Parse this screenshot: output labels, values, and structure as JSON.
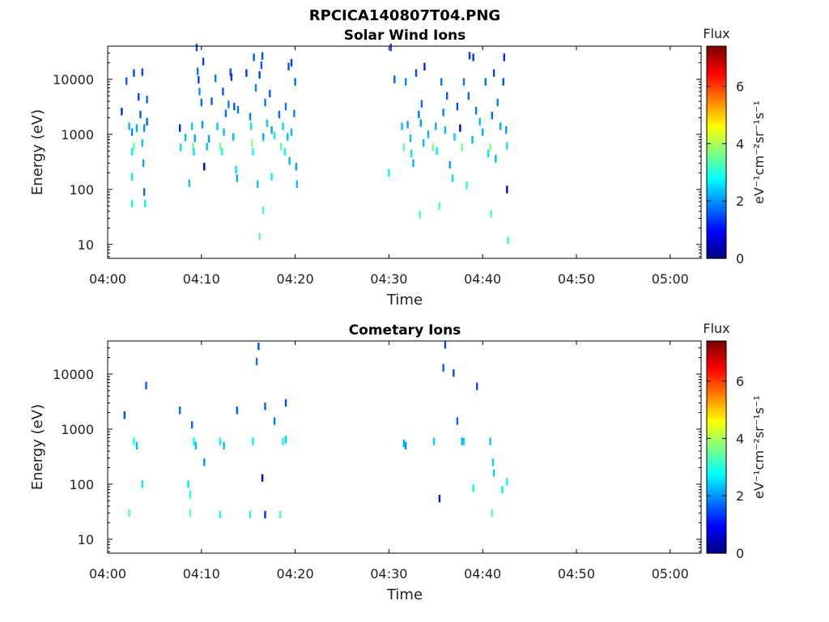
{
  "figure_title": "RPCICA140807T04.PNG",
  "colorbar": {
    "title": "Flux",
    "label": "eV⁻¹cm⁻²sr⁻¹s⁻¹",
    "ticks": [
      "0",
      "2",
      "4",
      "6"
    ],
    "range": [
      0,
      7.4
    ],
    "colormap": "jet"
  },
  "chart_data": [
    {
      "type": "heatmap",
      "title": "Solar Wind Ions",
      "xlabel": "Time",
      "ylabel": "Energy (eV)",
      "x_ticks": [
        "04:00",
        "04:10",
        "04:20",
        "04:30",
        "04:40",
        "04:50",
        "05:00"
      ],
      "x_range_minutes": [
        0,
        63.3
      ],
      "y_scale": "log",
      "y_ticks": [
        "10",
        "100",
        "1000",
        "10000"
      ],
      "y_range": [
        5.6,
        40000
      ],
      "grid": false,
      "points": [
        [
          1.5,
          2600,
          1.2
        ],
        [
          2.0,
          9300,
          1.6
        ],
        [
          2.3,
          1400,
          2.3
        ],
        [
          2.6,
          1100,
          1.9
        ],
        [
          2.6,
          480,
          2.7
        ],
        [
          2.8,
          600,
          3.6
        ],
        [
          2.6,
          170,
          2.6
        ],
        [
          2.6,
          55,
          2.8
        ],
        [
          2.8,
          13000,
          1.5
        ],
        [
          3.1,
          1300,
          2.2
        ],
        [
          3.3,
          4800,
          1.5
        ],
        [
          3.5,
          2300,
          1.6
        ],
        [
          3.7,
          700,
          2.4
        ],
        [
          3.7,
          13500,
          1.5
        ],
        [
          3.9,
          1300,
          2.0
        ],
        [
          3.8,
          300,
          2.1
        ],
        [
          3.9,
          90,
          1.7
        ],
        [
          4.0,
          55,
          2.7
        ],
        [
          4.2,
          1700,
          1.6
        ],
        [
          4.2,
          4300,
          1.7
        ],
        [
          7.7,
          1300,
          1.2
        ],
        [
          7.8,
          580,
          2.5
        ],
        [
          8.3,
          880,
          2.3
        ],
        [
          8.7,
          130,
          2.4
        ],
        [
          9.0,
          1400,
          2.4
        ],
        [
          9.1,
          600,
          3.7
        ],
        [
          9.2,
          480,
          2.6
        ],
        [
          9.3,
          850,
          2.1
        ],
        [
          9.5,
          38000,
          1.5
        ],
        [
          9.6,
          14000,
          1.8
        ],
        [
          9.7,
          9800,
          1.4
        ],
        [
          9.8,
          6000,
          2.0
        ],
        [
          10.0,
          3800,
          1.7
        ],
        [
          10.1,
          1500,
          2.0
        ],
        [
          10.2,
          21000,
          1.3
        ],
        [
          10.3,
          260,
          0.6
        ],
        [
          10.6,
          600,
          2.3
        ],
        [
          10.8,
          830,
          2.1
        ],
        [
          11.1,
          4000,
          1.6
        ],
        [
          11.5,
          10400,
          1.9
        ],
        [
          11.7,
          1400,
          2.4
        ],
        [
          12.0,
          600,
          3.7
        ],
        [
          12.2,
          480,
          2.9
        ],
        [
          12.3,
          6000,
          1.5
        ],
        [
          12.4,
          1100,
          2.3
        ],
        [
          12.6,
          2400,
          1.7
        ],
        [
          12.9,
          3500,
          1.9
        ],
        [
          13.1,
          13500,
          1.5
        ],
        [
          13.2,
          11000,
          1.3
        ],
        [
          13.4,
          900,
          2.3
        ],
        [
          13.5,
          3200,
          1.6
        ],
        [
          13.7,
          230,
          2.6
        ],
        [
          13.8,
          160,
          2.2
        ],
        [
          13.9,
          2800,
          1.8
        ],
        [
          14.8,
          13000,
          1.3
        ],
        [
          15.2,
          2100,
          1.8
        ],
        [
          15.3,
          1400,
          2.6
        ],
        [
          15.4,
          700,
          3.8
        ],
        [
          15.5,
          480,
          2.8
        ],
        [
          15.6,
          25000,
          1.6
        ],
        [
          15.8,
          7000,
          1.9
        ],
        [
          16.0,
          125,
          2.4
        ],
        [
          16.2,
          12000,
          1.4
        ],
        [
          16.4,
          18000,
          1.6
        ],
        [
          16.2,
          14,
          3.5
        ],
        [
          16.5,
          26500,
          1.5
        ],
        [
          16.6,
          42,
          3.3
        ],
        [
          16.6,
          900,
          2.2
        ],
        [
          16.8,
          3800,
          1.8
        ],
        [
          17.0,
          1600,
          2.4
        ],
        [
          17.3,
          5500,
          1.6
        ],
        [
          17.5,
          1200,
          2.1
        ],
        [
          17.5,
          170,
          2.7
        ],
        [
          17.8,
          950,
          2.6
        ],
        [
          18.3,
          2300,
          1.7
        ],
        [
          18.5,
          600,
          3.5
        ],
        [
          18.7,
          1400,
          2.5
        ],
        [
          18.9,
          480,
          2.8
        ],
        [
          19.0,
          3200,
          1.8
        ],
        [
          19.2,
          900,
          2.3
        ],
        [
          19.3,
          17000,
          1.5
        ],
        [
          19.4,
          330,
          2.2
        ],
        [
          19.6,
          1100,
          2.3
        ],
        [
          19.6,
          20000,
          1.4
        ],
        [
          19.9,
          2400,
          1.9
        ],
        [
          20.0,
          9000,
          1.7
        ],
        [
          20.1,
          260,
          2.1
        ],
        [
          20.2,
          125,
          2.3
        ],
        [
          30.0,
          200,
          2.7
        ],
        [
          30.2,
          38000,
          1.4
        ],
        [
          30.6,
          10000,
          1.6
        ],
        [
          31.4,
          1400,
          2.3
        ],
        [
          31.6,
          580,
          3.4
        ],
        [
          31.8,
          9000,
          1.9
        ],
        [
          32.0,
          1500,
          2.1
        ],
        [
          32.3,
          850,
          2.3
        ],
        [
          32.4,
          450,
          2.6
        ],
        [
          32.6,
          300,
          2.2
        ],
        [
          32.9,
          13000,
          1.5
        ],
        [
          33.2,
          2300,
          1.8
        ],
        [
          33.3,
          35,
          3.2
        ],
        [
          33.4,
          1600,
          2.1
        ],
        [
          33.5,
          3600,
          1.7
        ],
        [
          33.7,
          700,
          2.3
        ],
        [
          33.8,
          17000,
          1.2
        ],
        [
          34.2,
          1000,
          2.2
        ],
        [
          34.7,
          580,
          3.6
        ],
        [
          35.0,
          1400,
          2.2
        ],
        [
          35.1,
          500,
          2.6
        ],
        [
          35.4,
          50,
          3.3
        ],
        [
          35.6,
          9000,
          1.8
        ],
        [
          35.8,
          2500,
          1.9
        ],
        [
          36.0,
          1200,
          2.3
        ],
        [
          36.2,
          5000,
          1.6
        ],
        [
          36.5,
          280,
          2.1
        ],
        [
          36.8,
          160,
          2.5
        ],
        [
          37.0,
          900,
          2.4
        ],
        [
          37.3,
          3200,
          1.5
        ],
        [
          37.6,
          1300,
          0.8
        ],
        [
          37.8,
          580,
          3.6
        ],
        [
          38.0,
          9000,
          1.8
        ],
        [
          38.3,
          120,
          3.0
        ],
        [
          38.5,
          5000,
          1.7
        ],
        [
          38.6,
          27000,
          1.4
        ],
        [
          38.9,
          800,
          2.3
        ],
        [
          39.0,
          25000,
          1.3
        ],
        [
          39.3,
          2700,
          1.8
        ],
        [
          39.7,
          1700,
          2.3
        ],
        [
          40.0,
          1100,
          2.2
        ],
        [
          40.3,
          9000,
          1.7
        ],
        [
          40.6,
          450,
          2.6
        ],
        [
          40.8,
          580,
          3.7
        ],
        [
          40.9,
          36,
          3.3
        ],
        [
          41.0,
          2200,
          1.7
        ],
        [
          41.2,
          13000,
          1.4
        ],
        [
          41.4,
          360,
          2.2
        ],
        [
          41.6,
          3800,
          1.9
        ],
        [
          41.9,
          1400,
          2.2
        ],
        [
          42.2,
          9000,
          1.5
        ],
        [
          42.3,
          25000,
          1.2
        ],
        [
          42.5,
          1200,
          2.0
        ],
        [
          42.6,
          620,
          2.6
        ],
        [
          42.6,
          100,
          0.9
        ],
        [
          42.7,
          12,
          3.1
        ]
      ]
    },
    {
      "type": "heatmap",
      "title": "Cometary Ions",
      "xlabel": "Time",
      "ylabel": "Energy (eV)",
      "x_ticks": [
        "04:00",
        "04:10",
        "04:20",
        "04:30",
        "04:40",
        "04:50",
        "05:00"
      ],
      "x_range_minutes": [
        0,
        63.3
      ],
      "y_scale": "log",
      "y_ticks": [
        "10",
        "100",
        "1000",
        "10000"
      ],
      "y_range": [
        5.6,
        40000
      ],
      "grid": false,
      "points": [
        [
          1.8,
          1800,
          1.5
        ],
        [
          2.3,
          30,
          3.3
        ],
        [
          2.8,
          600,
          2.9
        ],
        [
          3.1,
          500,
          2.3
        ],
        [
          3.7,
          100,
          2.6
        ],
        [
          4.1,
          6200,
          1.6
        ],
        [
          7.7,
          2200,
          1.7
        ],
        [
          8.6,
          100,
          2.6
        ],
        [
          8.8,
          30,
          3.4
        ],
        [
          8.8,
          65,
          2.9
        ],
        [
          9.0,
          1200,
          1.7
        ],
        [
          9.2,
          600,
          2.8
        ],
        [
          9.4,
          500,
          2.3
        ],
        [
          10.3,
          250,
          2.0
        ],
        [
          12.0,
          600,
          2.7
        ],
        [
          12.0,
          28,
          3.0
        ],
        [
          12.4,
          500,
          2.3
        ],
        [
          13.8,
          2200,
          1.6
        ],
        [
          15.2,
          28,
          3.0
        ],
        [
          15.5,
          600,
          2.7
        ],
        [
          15.9,
          17000,
          1.8
        ],
        [
          16.1,
          32000,
          1.5
        ],
        [
          16.5,
          130,
          0.9
        ],
        [
          16.8,
          28,
          1.2
        ],
        [
          16.8,
          2600,
          1.6
        ],
        [
          17.8,
          1400,
          1.8
        ],
        [
          18.4,
          28,
          3.4
        ],
        [
          18.7,
          600,
          2.9
        ],
        [
          19.0,
          650,
          2.4
        ],
        [
          19.0,
          3000,
          1.5
        ],
        [
          31.6,
          550,
          2.2
        ],
        [
          31.8,
          500,
          2.0
        ],
        [
          34.8,
          600,
          2.4
        ],
        [
          35.4,
          55,
          1.1
        ],
        [
          35.8,
          13000,
          1.6
        ],
        [
          36.0,
          34000,
          1.5
        ],
        [
          36.9,
          10500,
          1.5
        ],
        [
          37.3,
          1400,
          1.7
        ],
        [
          37.8,
          600,
          2.2
        ],
        [
          38.0,
          600,
          2.5
        ],
        [
          39.0,
          85,
          2.7
        ],
        [
          39.4,
          6000,
          1.5
        ],
        [
          40.8,
          600,
          2.4
        ],
        [
          41.0,
          30,
          3.4
        ],
        [
          41.1,
          250,
          2.4
        ],
        [
          41.2,
          160,
          2.5
        ],
        [
          42.1,
          80,
          2.7
        ],
        [
          42.6,
          110,
          2.8
        ]
      ]
    }
  ]
}
